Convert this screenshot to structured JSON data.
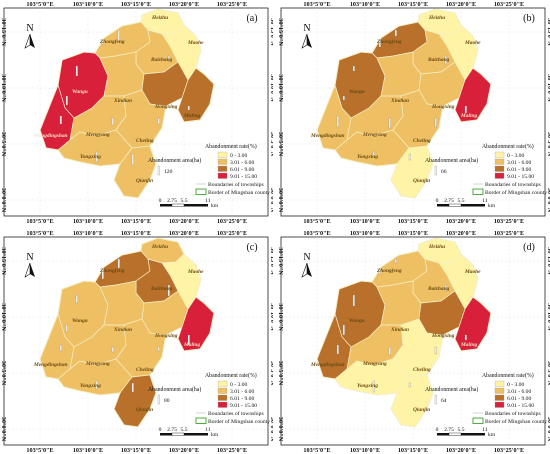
{
  "colors": {
    "class1": "#fff3a6",
    "class2": "#eec063",
    "class3": "#b8702a",
    "class4": "#d9203a",
    "bar": "#ffffff",
    "border": "#4cae3e"
  },
  "axes": {
    "top": [
      "103°5'0\"E",
      "103°10'0\"E",
      "103°15'0\"E",
      "103°20'0\"E",
      "103°25'0\"E"
    ],
    "left": [
      "30°15'0\"N",
      "30°10'0\"N",
      "30°5'0\"N",
      "30°0'0\"N"
    ]
  },
  "legend": {
    "rate_title": "Abandonment rate(%)",
    "classes": [
      "0 - 3.00",
      "3.01 - 6.00",
      "6.01 - 9.00",
      "9.01 - 15.00"
    ],
    "area_title": "Abandonment area(ha)",
    "boundaries": "Boundaries of townships",
    "border": "Border of Mingshan county"
  },
  "scale": {
    "labels": [
      "0",
      "2.75",
      "5.5",
      "11"
    ],
    "unit": "km"
  },
  "north_label": "N",
  "towns": [
    "Heizhu",
    "Zhongfeng",
    "Maohe",
    "Baizhang",
    "Wangu",
    "Xindian",
    "Hongxing",
    "Maling",
    "Mengdingshan",
    "Mengyang",
    "Cheling",
    "Yongxing",
    "Qianjin"
  ],
  "panels": [
    {
      "label": "(a)",
      "area_value": "120",
      "classes": {
        "Heizhu": 1,
        "Zhongfeng": 2,
        "Maohe": 1,
        "Baizhang": 2,
        "Wangu": 4,
        "Xindian": 2,
        "Hongxing": 3,
        "Maling": 3,
        "Mengdingshan": 4,
        "Mengyang": 2,
        "Cheling": 2,
        "Yongxing": 2,
        "Qianjin": 2
      }
    },
    {
      "label": "(b)",
      "area_value": "66",
      "classes": {
        "Heizhu": 1,
        "Zhongfeng": 3,
        "Maohe": 1,
        "Baizhang": 2,
        "Wangu": 3,
        "Xindian": 2,
        "Hongxing": 2,
        "Maling": 4,
        "Mengdingshan": 2,
        "Mengyang": 2,
        "Cheling": 2,
        "Yongxing": 2,
        "Qianjin": 1
      }
    },
    {
      "label": "(c)",
      "area_value": "80",
      "classes": {
        "Heizhu": 2,
        "Zhongfeng": 3,
        "Maohe": 1,
        "Baizhang": 3,
        "Wangu": 2,
        "Xindian": 2,
        "Hongxing": 2,
        "Maling": 4,
        "Mengdingshan": 2,
        "Mengyang": 2,
        "Cheling": 2,
        "Yongxing": 2,
        "Qianjin": 3
      }
    },
    {
      "label": "(d)",
      "area_value": "64",
      "classes": {
        "Heizhu": 1,
        "Zhongfeng": 2,
        "Maohe": 1,
        "Baizhang": 2,
        "Wangu": 3,
        "Xindian": 2,
        "Hongxing": 3,
        "Maling": 4,
        "Mengdingshan": 3,
        "Mengyang": 2,
        "Cheling": 1,
        "Yongxing": 1,
        "Qianjin": 1
      }
    }
  ]
}
